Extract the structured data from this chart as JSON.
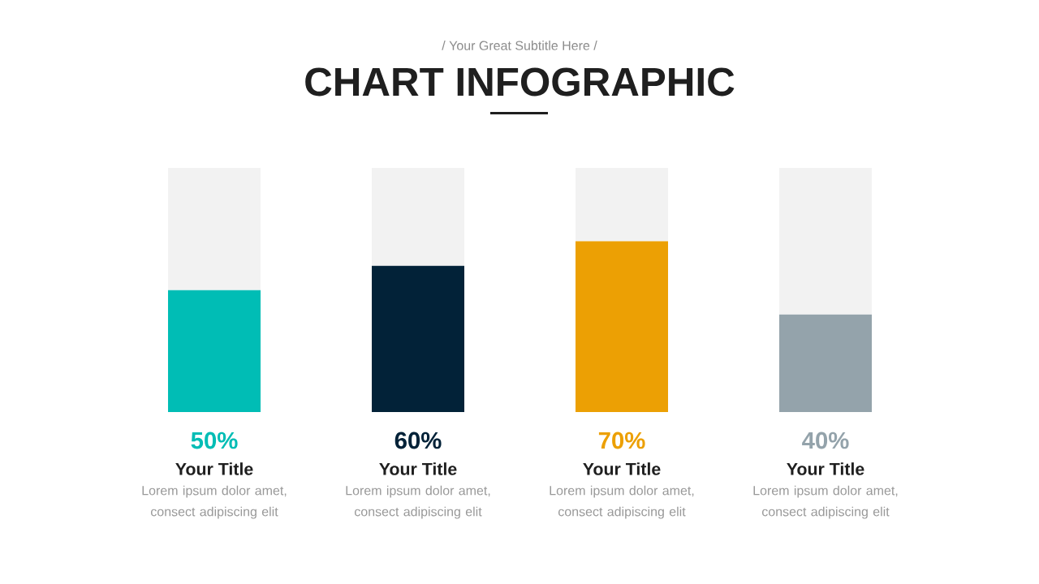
{
  "chart_data": {
    "type": "bar",
    "title": "CHART INFOGRAPHIC",
    "subtitle": "/ Your Great Subtitle Here /",
    "categories": [
      "Your Title",
      "Your Title",
      "Your Title",
      "Your Title"
    ],
    "stacked": true,
    "series": [
      {
        "values": [
          50,
          60,
          70,
          40
        ],
        "colors": [
          "#00bdb5",
          "#022238",
          "#eca004",
          "#94a3ab"
        ],
        "value_labels": [
          "50%",
          "60%",
          "70%",
          "40%"
        ]
      },
      {
        "values": [
          50,
          40,
          30,
          60
        ],
        "color": "#f2f2f2"
      }
    ],
    "ylim": [
      0,
      100
    ],
    "annotations": [
      "Lorem ipsum dolor amet, consect adipiscing elit",
      "Lorem ipsum dolor amet, consect adipiscing elit",
      "Lorem ipsum dolor amet, consect adipiscing elit",
      "Lorem ipsum dolor amet, consect adipiscing elit"
    ]
  }
}
